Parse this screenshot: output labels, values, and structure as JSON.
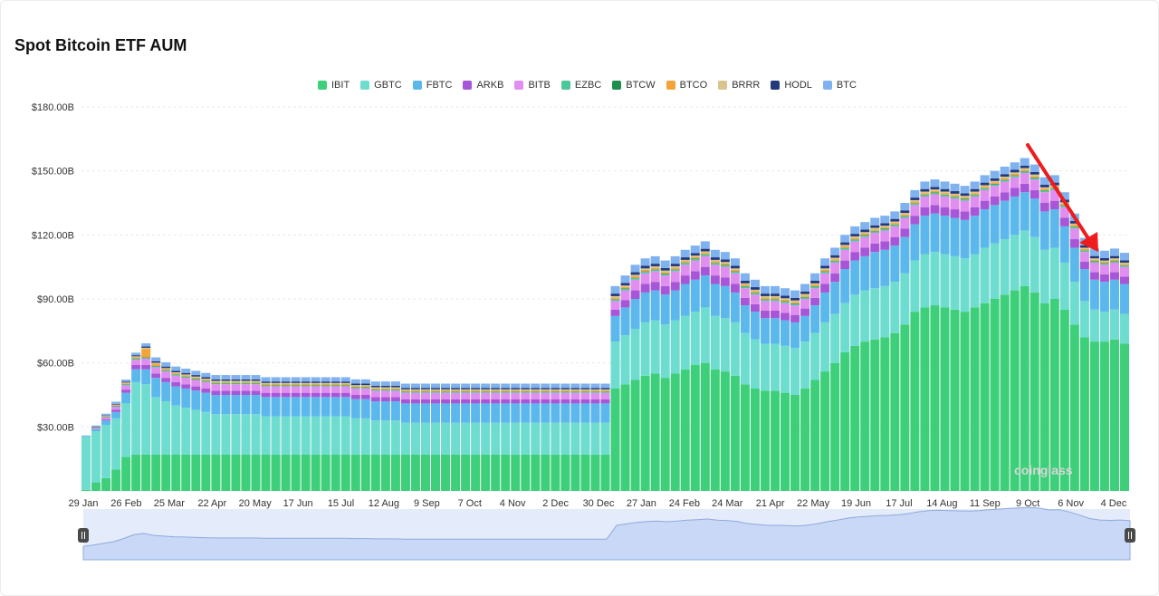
{
  "title": "Spot Bitcoin ETF AUM",
  "watermark": "coinglass",
  "legend": [
    {
      "name": "IBIT",
      "color": "#3ecf7a"
    },
    {
      "name": "GBTC",
      "color": "#6fdcd0"
    },
    {
      "name": "FBTC",
      "color": "#5cb8ec"
    },
    {
      "name": "ARKB",
      "color": "#a856d8"
    },
    {
      "name": "BITB",
      "color": "#e08ef0"
    },
    {
      "name": "EZBC",
      "color": "#4cc79a"
    },
    {
      "name": "BTCW",
      "color": "#1e8e4e"
    },
    {
      "name": "BTCO",
      "color": "#f2a43a"
    },
    {
      "name": "BRRR",
      "color": "#d8c48e"
    },
    {
      "name": "HODL",
      "color": "#233a7a"
    },
    {
      "name": "BTC",
      "color": "#7fb2ee"
    }
  ],
  "annotation_color": "#ee1c1c",
  "chart_data": {
    "type": "bar",
    "stacked": true,
    "x_tick_labels": [
      "29 Jan",
      "26 Feb",
      "25 Mar",
      "22 Apr",
      "20 May",
      "17 Jun",
      "15 Jul",
      "12 Aug",
      "9 Sep",
      "7 Oct",
      "4 Nov",
      "2 Dec",
      "30 Dec",
      "27 Jan",
      "24 Feb",
      "24 Mar",
      "21 Apr",
      "22 May",
      "19 Jun",
      "17 Jul",
      "14 Aug",
      "11 Sep",
      "9 Oct",
      "6 Nov",
      "4 Dec"
    ],
    "y_tick_labels": [
      "$180.00B",
      "$150.00B",
      "$120.00B",
      "$90.00B",
      "$60.00B",
      "$30.00B"
    ],
    "y_ticks": [
      180,
      150,
      120,
      90,
      60,
      30
    ],
    "ylim": [
      0,
      180
    ],
    "grid": true,
    "legend_position": "top-center",
    "unit": "$B",
    "series_names": [
      "IBIT",
      "GBTC",
      "FBTC",
      "ARKB",
      "BITB",
      "EZBC",
      "BTCW",
      "BTCO",
      "BRRR",
      "HODL",
      "BTC"
    ],
    "series": [
      {
        "name": "IBIT",
        "values": [
          0.5,
          4,
          6,
          10,
          16,
          17,
          17,
          17,
          17,
          17,
          17,
          17,
          17,
          17,
          17,
          17,
          17,
          17,
          17,
          17,
          17,
          17,
          17,
          17,
          17,
          17,
          17,
          17,
          17,
          17,
          17,
          17,
          17,
          17,
          17,
          17,
          17,
          17,
          17,
          17,
          17,
          17,
          17,
          17,
          17,
          17,
          17,
          17,
          17,
          17,
          17,
          17,
          17,
          48,
          50,
          52,
          54,
          55,
          53,
          55,
          57,
          59,
          60,
          57,
          56,
          54,
          50,
          48,
          47,
          47,
          46,
          45,
          48,
          52,
          56,
          60,
          65,
          68,
          70,
          71,
          72,
          74,
          78,
          84,
          86,
          87,
          86,
          85,
          84,
          86,
          88,
          90,
          92,
          94,
          96,
          93,
          88,
          90,
          85,
          78,
          72,
          70,
          70,
          71,
          69
        ]
      },
      {
        "name": "GBTC",
        "values": [
          25,
          24,
          25,
          24,
          25,
          34,
          33,
          27,
          25,
          23,
          22,
          21,
          20,
          19,
          19,
          19,
          19,
          19,
          18,
          18,
          18,
          18,
          18,
          18,
          18,
          18,
          18,
          17,
          17,
          16,
          16,
          16,
          15,
          15,
          15,
          15,
          15,
          15,
          15,
          15,
          15,
          15,
          15,
          15,
          15,
          15,
          15,
          15,
          15,
          15,
          15,
          15,
          15,
          22,
          23,
          24,
          25,
          25,
          25,
          25,
          25,
          25,
          26,
          25,
          25,
          25,
          24,
          23,
          22,
          22,
          22,
          22,
          22,
          22,
          23,
          23,
          23,
          24,
          24,
          24,
          24,
          24,
          24,
          24,
          25,
          25,
          25,
          25,
          25,
          25,
          26,
          26,
          26,
          26,
          26,
          26,
          25,
          24,
          22,
          20,
          17,
          15,
          14,
          14,
          14
        ]
      },
      {
        "name": "FBTC",
        "values": [
          0.2,
          1,
          2,
          3,
          5,
          6,
          7,
          9,
          9,
          9,
          9,
          9,
          9,
          9,
          9,
          9,
          9,
          9,
          9,
          9,
          9,
          9,
          9,
          9,
          9,
          9,
          9,
          9,
          9,
          9,
          9,
          9,
          9,
          9,
          9,
          9,
          9,
          9,
          9,
          9,
          9,
          9,
          9,
          9,
          9,
          9,
          9,
          9,
          9,
          9,
          9,
          9,
          9,
          12,
          13,
          14,
          14,
          14,
          14,
          14,
          15,
          15,
          15,
          15,
          15,
          14,
          13,
          13,
          12,
          12,
          12,
          12,
          12,
          13,
          14,
          15,
          16,
          16,
          16,
          17,
          17,
          17,
          17,
          17,
          18,
          18,
          18,
          18,
          18,
          18,
          18,
          18,
          18,
          18,
          18,
          18,
          18,
          18,
          17,
          16,
          15,
          14,
          14,
          14,
          14
        ]
      },
      {
        "name": "ARKB",
        "values": [
          0,
          0.2,
          0.5,
          1,
          1.5,
          2,
          2,
          2,
          2,
          2,
          2,
          2,
          2,
          2,
          2,
          2,
          2,
          2,
          2,
          2,
          2,
          2,
          2,
          2,
          2,
          2,
          2,
          2,
          2,
          2,
          2,
          2,
          2,
          2,
          2,
          2,
          2,
          2,
          2,
          2,
          2,
          2,
          2,
          2,
          2,
          2,
          2,
          2,
          2,
          2,
          2,
          2,
          2,
          3,
          3.5,
          4,
          4,
          4,
          4,
          4,
          4,
          4,
          4,
          4,
          4,
          4,
          3.5,
          3.5,
          3.5,
          3.5,
          3.5,
          3.5,
          3.5,
          3.5,
          4,
          4,
          4,
          4,
          4,
          4,
          4,
          4,
          4,
          4,
          4,
          4,
          4,
          4,
          4,
          4,
          4,
          4,
          4,
          4,
          4,
          4,
          4,
          4,
          4,
          4,
          3.5,
          3.5,
          3.5,
          3.5,
          3.5
        ]
      },
      {
        "name": "BITB",
        "values": [
          0,
          0.5,
          1,
          1.5,
          2,
          2.5,
          3,
          3,
          3,
          3,
          3,
          3,
          3,
          3,
          3,
          3,
          3,
          3,
          3,
          3,
          3,
          3,
          3,
          3,
          3,
          3,
          3,
          3,
          3,
          3,
          3,
          3,
          3,
          3,
          3,
          3,
          3,
          3,
          3,
          3,
          3,
          3,
          3,
          3,
          3,
          3,
          3,
          3,
          3,
          3,
          3,
          3,
          3,
          4,
          4.5,
          5,
          5,
          5,
          5,
          5,
          5,
          5,
          5,
          5,
          5,
          5,
          4.5,
          4.5,
          4.5,
          4.5,
          4.5,
          4.5,
          4.5,
          4.5,
          5,
          5,
          5,
          5,
          5,
          5,
          5,
          5,
          5,
          5,
          5,
          5,
          5,
          5,
          5,
          5,
          5,
          5,
          5,
          5,
          5,
          5,
          5,
          5,
          5,
          5,
          4.5,
          4.5,
          4.5,
          4.5,
          4.5
        ]
      },
      {
        "name": "EZBC",
        "values": [
          0,
          0.1,
          0.2,
          0.3,
          0.4,
          0.5,
          0.5,
          0.5,
          0.5,
          0.5,
          0.5,
          0.5,
          0.5,
          0.5,
          0.5,
          0.5,
          0.5,
          0.5,
          0.5,
          0.5,
          0.5,
          0.5,
          0.5,
          0.5,
          0.5,
          0.5,
          0.5,
          0.5,
          0.5,
          0.5,
          0.5,
          0.5,
          0.5,
          0.5,
          0.5,
          0.5,
          0.5,
          0.5,
          0.5,
          0.5,
          0.5,
          0.5,
          0.5,
          0.5,
          0.5,
          0.5,
          0.5,
          0.5,
          0.5,
          0.5,
          0.5,
          0.5,
          0.5,
          0.7,
          0.7,
          0.7,
          0.7,
          0.7,
          0.7,
          0.7,
          0.7,
          0.7,
          0.7,
          0.7,
          0.7,
          0.7,
          0.7,
          0.7,
          0.7,
          0.7,
          0.7,
          0.7,
          0.7,
          0.7,
          0.7,
          0.7,
          0.7,
          0.7,
          0.7,
          0.7,
          0.7,
          0.7,
          0.7,
          0.7,
          0.7,
          0.7,
          0.7,
          0.7,
          0.7,
          0.7,
          0.7,
          0.7,
          0.7,
          0.7,
          0.7,
          0.7,
          0.7,
          0.7,
          0.7,
          0.7,
          0.6,
          0.6,
          0.6,
          0.6,
          0.6
        ]
      },
      {
        "name": "BTCW",
        "values": [
          0,
          0.05,
          0.1,
          0.1,
          0.1,
          0.1,
          0.1,
          0.1,
          0.1,
          0.1,
          0.1,
          0.1,
          0.1,
          0.1,
          0.1,
          0.1,
          0.1,
          0.1,
          0.1,
          0.1,
          0.1,
          0.1,
          0.1,
          0.1,
          0.1,
          0.1,
          0.1,
          0.1,
          0.1,
          0.1,
          0.1,
          0.1,
          0.1,
          0.1,
          0.1,
          0.1,
          0.1,
          0.1,
          0.1,
          0.1,
          0.1,
          0.1,
          0.1,
          0.1,
          0.1,
          0.1,
          0.1,
          0.1,
          0.1,
          0.1,
          0.1,
          0.1,
          0.1,
          0.2,
          0.2,
          0.2,
          0.2,
          0.2,
          0.2,
          0.2,
          0.2,
          0.2,
          0.2,
          0.2,
          0.2,
          0.2,
          0.2,
          0.2,
          0.2,
          0.2,
          0.2,
          0.2,
          0.2,
          0.2,
          0.2,
          0.2,
          0.2,
          0.2,
          0.2,
          0.2,
          0.2,
          0.2,
          0.2,
          0.2,
          0.2,
          0.2,
          0.2,
          0.2,
          0.2,
          0.2,
          0.2,
          0.2,
          0.2,
          0.2,
          0.2,
          0.2,
          0.2,
          0.2,
          0.2,
          0.2,
          0.2,
          0.2,
          0.2,
          0.2,
          0.2
        ]
      },
      {
        "name": "BTCO",
        "values": [
          0,
          0.1,
          0.2,
          0.3,
          0.4,
          0.5,
          4,
          1,
          0.5,
          0.5,
          0.5,
          0.5,
          0.5,
          0.5,
          0.5,
          0.5,
          0.5,
          0.5,
          0.5,
          0.5,
          0.5,
          0.5,
          0.5,
          0.5,
          0.5,
          0.5,
          0.5,
          0.5,
          0.5,
          0.5,
          0.5,
          0.5,
          0.5,
          0.5,
          0.5,
          0.5,
          0.5,
          0.5,
          0.5,
          0.5,
          0.5,
          0.5,
          0.5,
          0.5,
          0.5,
          0.5,
          0.5,
          0.5,
          0.5,
          0.5,
          0.5,
          0.5,
          0.5,
          0.7,
          0.7,
          0.7,
          0.7,
          0.7,
          0.7,
          0.7,
          0.7,
          0.7,
          0.7,
          0.7,
          0.7,
          0.7,
          0.7,
          0.7,
          0.7,
          0.7,
          0.7,
          0.7,
          0.7,
          0.7,
          0.7,
          0.7,
          0.7,
          0.7,
          0.7,
          0.7,
          0.7,
          0.7,
          0.7,
          0.7,
          0.7,
          0.7,
          0.7,
          0.7,
          0.7,
          0.7,
          0.7,
          0.7,
          0.7,
          0.7,
          0.7,
          0.7,
          0.7,
          0.7,
          0.7,
          0.7,
          0.6,
          0.6,
          0.6,
          0.6,
          0.6
        ]
      },
      {
        "name": "BRRR",
        "values": [
          0,
          0.1,
          0.2,
          0.3,
          0.4,
          0.5,
          0.5,
          0.5,
          0.5,
          0.5,
          0.5,
          0.5,
          0.5,
          0.5,
          0.5,
          0.5,
          0.5,
          0.5,
          0.5,
          0.5,
          0.5,
          0.5,
          0.5,
          0.5,
          0.5,
          0.5,
          0.5,
          0.5,
          0.5,
          0.5,
          0.5,
          0.5,
          0.5,
          0.5,
          0.5,
          0.5,
          0.5,
          0.5,
          0.5,
          0.5,
          0.5,
          0.5,
          0.5,
          0.5,
          0.5,
          0.5,
          0.5,
          0.5,
          0.5,
          0.5,
          0.5,
          0.5,
          0.5,
          0.7,
          0.7,
          0.7,
          0.7,
          0.7,
          0.7,
          0.7,
          0.7,
          0.7,
          0.7,
          0.7,
          0.7,
          0.7,
          0.7,
          0.7,
          0.7,
          0.7,
          0.7,
          0.7,
          0.7,
          0.7,
          0.7,
          0.7,
          0.7,
          0.7,
          0.7,
          0.7,
          0.7,
          0.7,
          0.7,
          0.7,
          0.7,
          0.7,
          0.7,
          0.7,
          0.7,
          0.7,
          0.7,
          0.7,
          0.7,
          0.7,
          0.7,
          0.7,
          0.7,
          0.7,
          0.7,
          0.7,
          0.6,
          0.6,
          0.6,
          0.6,
          0.6
        ]
      },
      {
        "name": "HODL",
        "values": [
          0,
          0.1,
          0.2,
          0.3,
          0.4,
          0.5,
          0.6,
          0.7,
          0.7,
          0.7,
          0.7,
          0.7,
          0.7,
          0.7,
          0.7,
          0.7,
          0.7,
          0.7,
          0.7,
          0.7,
          0.7,
          0.7,
          0.7,
          0.7,
          0.7,
          0.7,
          0.7,
          0.7,
          0.7,
          0.7,
          0.7,
          0.7,
          0.7,
          0.7,
          0.7,
          0.7,
          0.7,
          0.7,
          0.7,
          0.7,
          0.7,
          0.7,
          0.7,
          0.7,
          0.7,
          0.7,
          0.7,
          0.7,
          0.7,
          0.7,
          0.7,
          0.7,
          0.7,
          1.2,
          1.2,
          1.2,
          1.2,
          1.2,
          1.2,
          1.2,
          1.2,
          1.2,
          1.2,
          1.2,
          1.2,
          1.2,
          1.2,
          1.2,
          1.2,
          1.2,
          1.2,
          1.2,
          1.2,
          1.2,
          1.2,
          1.2,
          1.2,
          1.2,
          1.2,
          1.2,
          1.2,
          1.2,
          1.2,
          1.2,
          1.2,
          1.2,
          1.2,
          1.2,
          1.2,
          1.2,
          1.2,
          1.2,
          1.2,
          1.2,
          1.2,
          1.2,
          1.2,
          1.2,
          1.2,
          1.2,
          1.1,
          1.1,
          1.1,
          1.1,
          1.1
        ]
      },
      {
        "name": "BTC",
        "values": [
          0.3,
          0.5,
          0.8,
          1,
          1,
          1.2,
          1.5,
          1.8,
          2,
          2,
          2,
          2,
          2,
          2,
          2,
          2,
          2,
          2,
          2,
          2,
          2,
          2,
          2,
          2,
          2,
          2,
          2,
          2,
          2,
          2,
          2,
          2,
          2,
          2,
          2,
          2,
          2,
          2,
          2,
          2,
          2,
          2,
          2,
          2,
          2,
          2,
          2,
          2,
          2,
          2,
          2,
          2,
          2,
          3.5,
          3.5,
          3.5,
          3.5,
          3.5,
          3.5,
          3.5,
          3.5,
          3.5,
          3.5,
          3.5,
          3.5,
          3.5,
          3.5,
          3.5,
          3.5,
          3.5,
          3.5,
          3.5,
          3.5,
          3.5,
          3.5,
          3.5,
          3.5,
          3.5,
          3.5,
          3.5,
          3.5,
          3.5,
          3.5,
          3.5,
          3.5,
          3.5,
          3.5,
          3.5,
          3.5,
          3.5,
          3.5,
          3.5,
          3.5,
          3.5,
          3.5,
          3.5,
          3.5,
          3.5,
          3.5,
          3.5,
          3.5,
          3.5,
          3.5,
          3.5,
          3.5
        ]
      }
    ]
  }
}
